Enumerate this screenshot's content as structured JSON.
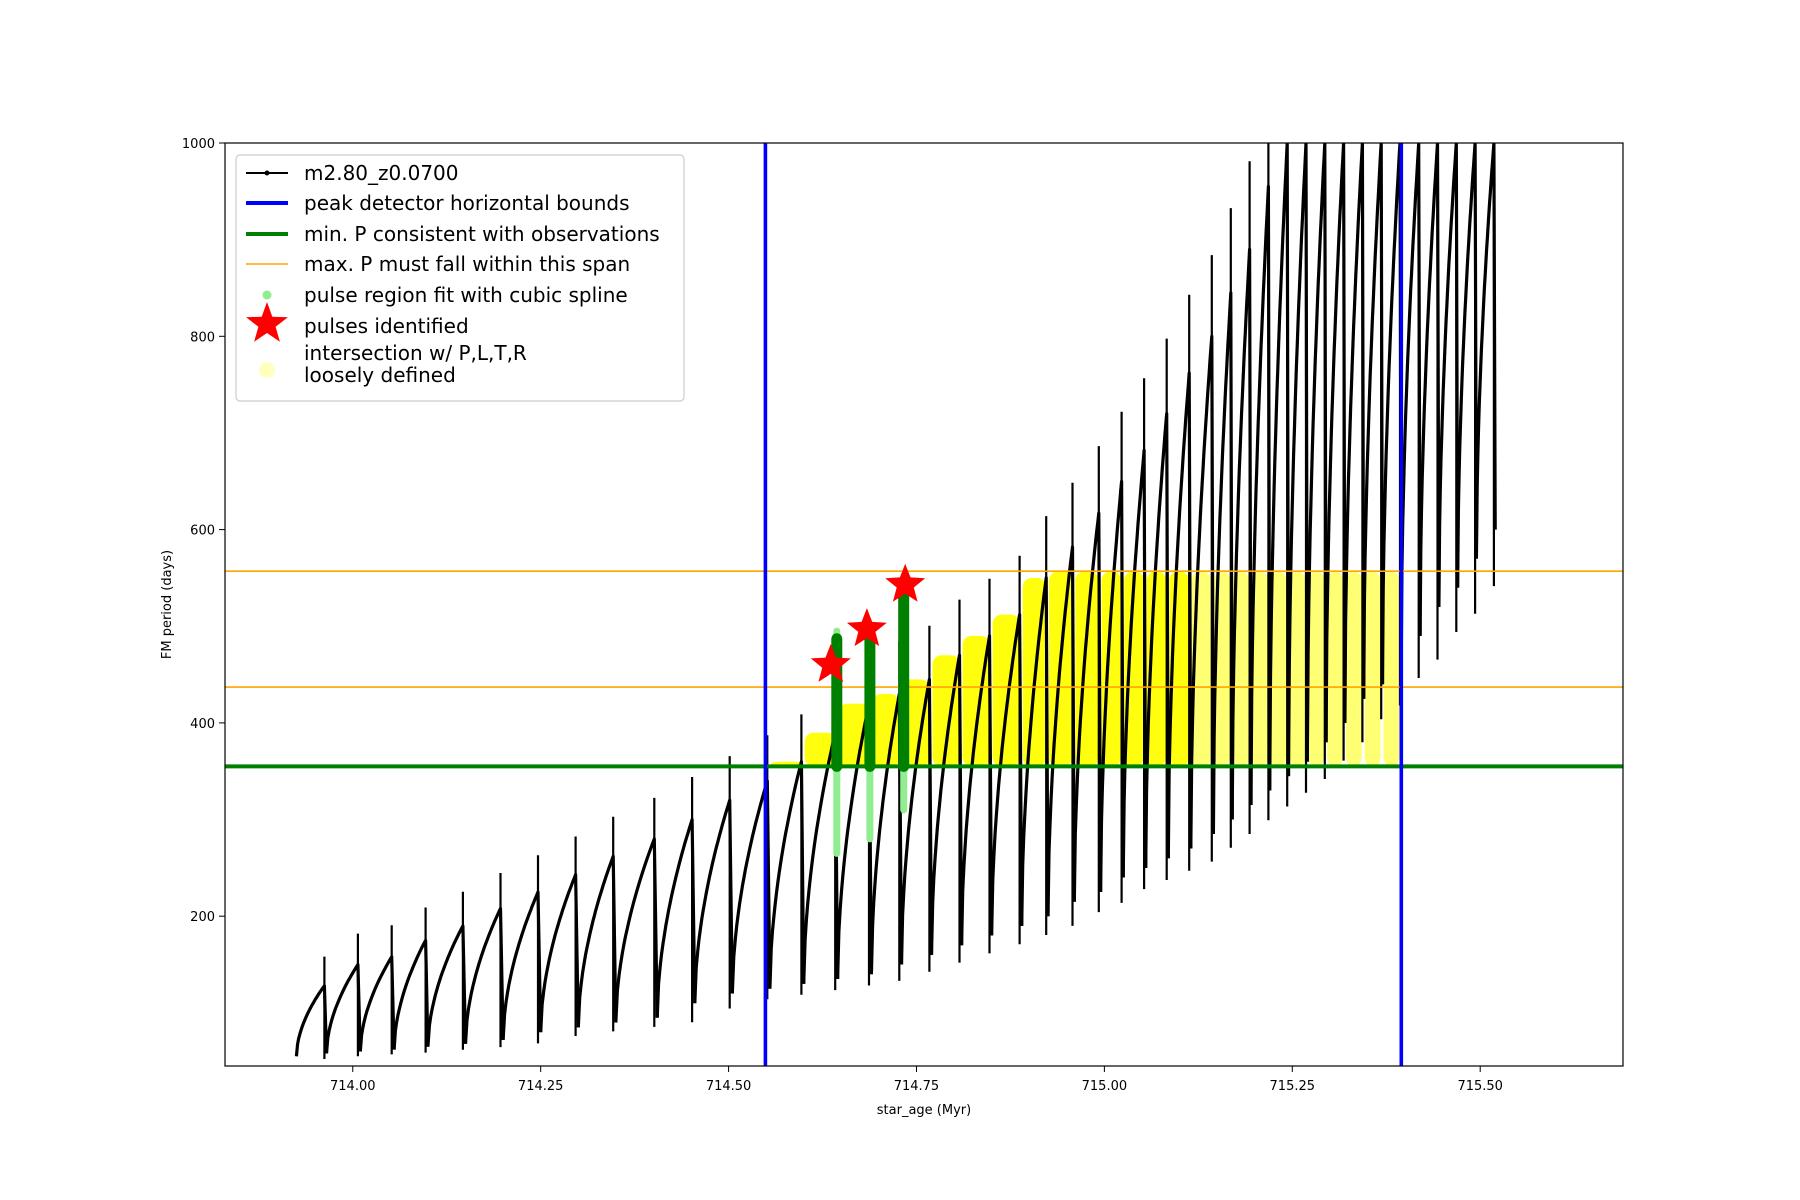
{
  "chart_data": {
    "type": "line",
    "xlabel": "star_age (Myr)",
    "ylabel": "FM period (days)",
    "xlim": [
      713.83,
      715.69
    ],
    "ylim": [
      45,
      1000
    ],
    "xticks": [
      714.0,
      714.25,
      714.5,
      714.75,
      715.0,
      715.25,
      715.5
    ],
    "xtick_labels": [
      "714.00",
      "714.25",
      "714.50",
      "714.75",
      "715.00",
      "715.25",
      "715.50"
    ],
    "yticks": [
      200,
      400,
      600,
      800,
      1000
    ],
    "ytick_labels": [
      "200",
      "400",
      "600",
      "800",
      "1000"
    ],
    "grid": false,
    "legend": {
      "placement": "top-left",
      "entries": [
        {
          "label": "m2.80_z0.0700",
          "style": "line-dot",
          "color": "#000000"
        },
        {
          "label": "peak detector horizontal bounds",
          "style": "line",
          "color": "#0000ff"
        },
        {
          "label": "min. P consistent with observations",
          "style": "line",
          "color": "#008000"
        },
        {
          "label": "max. P must fall within this span",
          "style": "thin-line",
          "color": "#ffa500"
        },
        {
          "label": "pulse region fit with cubic spline",
          "style": "dot",
          "color": "#90ee90"
        },
        {
          "label": "pulses identified",
          "style": "star",
          "color": "#ff0000"
        },
        {
          "label": "intersection w/ P,L,T,R\nloosely defined",
          "style": "big-dot",
          "color": "#ffffc0"
        }
      ]
    },
    "series": [
      {
        "name": "m2.80_z0.0700",
        "kind": "sawtooth-track",
        "color": "#000000",
        "cycle_starts": [
          713.925,
          713.965,
          714.01,
          714.055,
          714.1,
          714.15,
          714.2,
          714.25,
          714.3,
          714.35,
          714.405,
          714.455,
          714.505,
          714.555,
          714.6,
          714.645,
          714.69,
          714.73,
          714.77,
          714.81,
          714.85,
          714.89,
          714.925,
          714.96,
          714.995,
          715.025,
          715.055,
          715.085,
          715.115,
          715.145,
          715.17,
          715.195,
          715.22,
          715.245,
          715.27,
          715.295,
          715.32,
          715.345,
          715.37,
          715.395,
          715.42,
          715.445,
          715.47,
          715.495,
          715.52
        ],
        "peaks": [
          128,
          150,
          158,
          175,
          190,
          208,
          225,
          243,
          262,
          280,
          300,
          320,
          340,
          360,
          390,
          420,
          430,
          445,
          470,
          490,
          512,
          550,
          582,
          617,
          650,
          682,
          720,
          762,
          800,
          845,
          890,
          955,
          1000,
          1000,
          1000,
          1000,
          1000,
          1000,
          1000,
          1000,
          1000,
          1000,
          1000,
          1000
        ],
        "troughs": [
          55,
          58,
          60,
          62,
          65,
          68,
          72,
          80,
          85,
          90,
          95,
          110,
          120,
          125,
          130,
          135,
          140,
          150,
          160,
          170,
          180,
          190,
          200,
          215,
          225,
          240,
          250,
          260,
          270,
          285,
          300,
          315,
          330,
          345,
          360,
          380,
          400,
          425,
          440,
          470,
          490,
          520,
          540,
          570,
          600
        ]
      },
      {
        "name": "peak detector horizontal bounds",
        "kind": "vline",
        "color": "#0000ff",
        "x": [
          714.549,
          715.395
        ]
      },
      {
        "name": "min. P consistent with observations",
        "kind": "hline",
        "color": "#008000",
        "y": 355
      },
      {
        "name": "max. P must fall within this span",
        "kind": "hline",
        "color": "#ffa500",
        "y": [
          437,
          557
        ]
      },
      {
        "name": "pulse region fit with cubic spline",
        "kind": "vertical-runs",
        "color": "#90ee90",
        "points": [
          {
            "x": 714.644,
            "y0": 265,
            "y1": 495
          },
          {
            "x": 714.688,
            "y0": 280,
            "y1": 500
          },
          {
            "x": 714.733,
            "y0": 310,
            "y1": 545
          }
        ]
      },
      {
        "name": "pulses identified",
        "kind": "markers",
        "color": "#ff0000",
        "points": [
          {
            "x": 714.636,
            "y": 460
          },
          {
            "x": 714.684,
            "y": 497
          },
          {
            "x": 714.735,
            "y": 543
          }
        ]
      },
      {
        "name": "intersection w/ P,L,T,R\nloosely defined",
        "kind": "fills",
        "color": "#ffff00",
        "range": [
          714.555,
          715.395
        ],
        "ymin": 355,
        "ymax": 557
      }
    ]
  }
}
